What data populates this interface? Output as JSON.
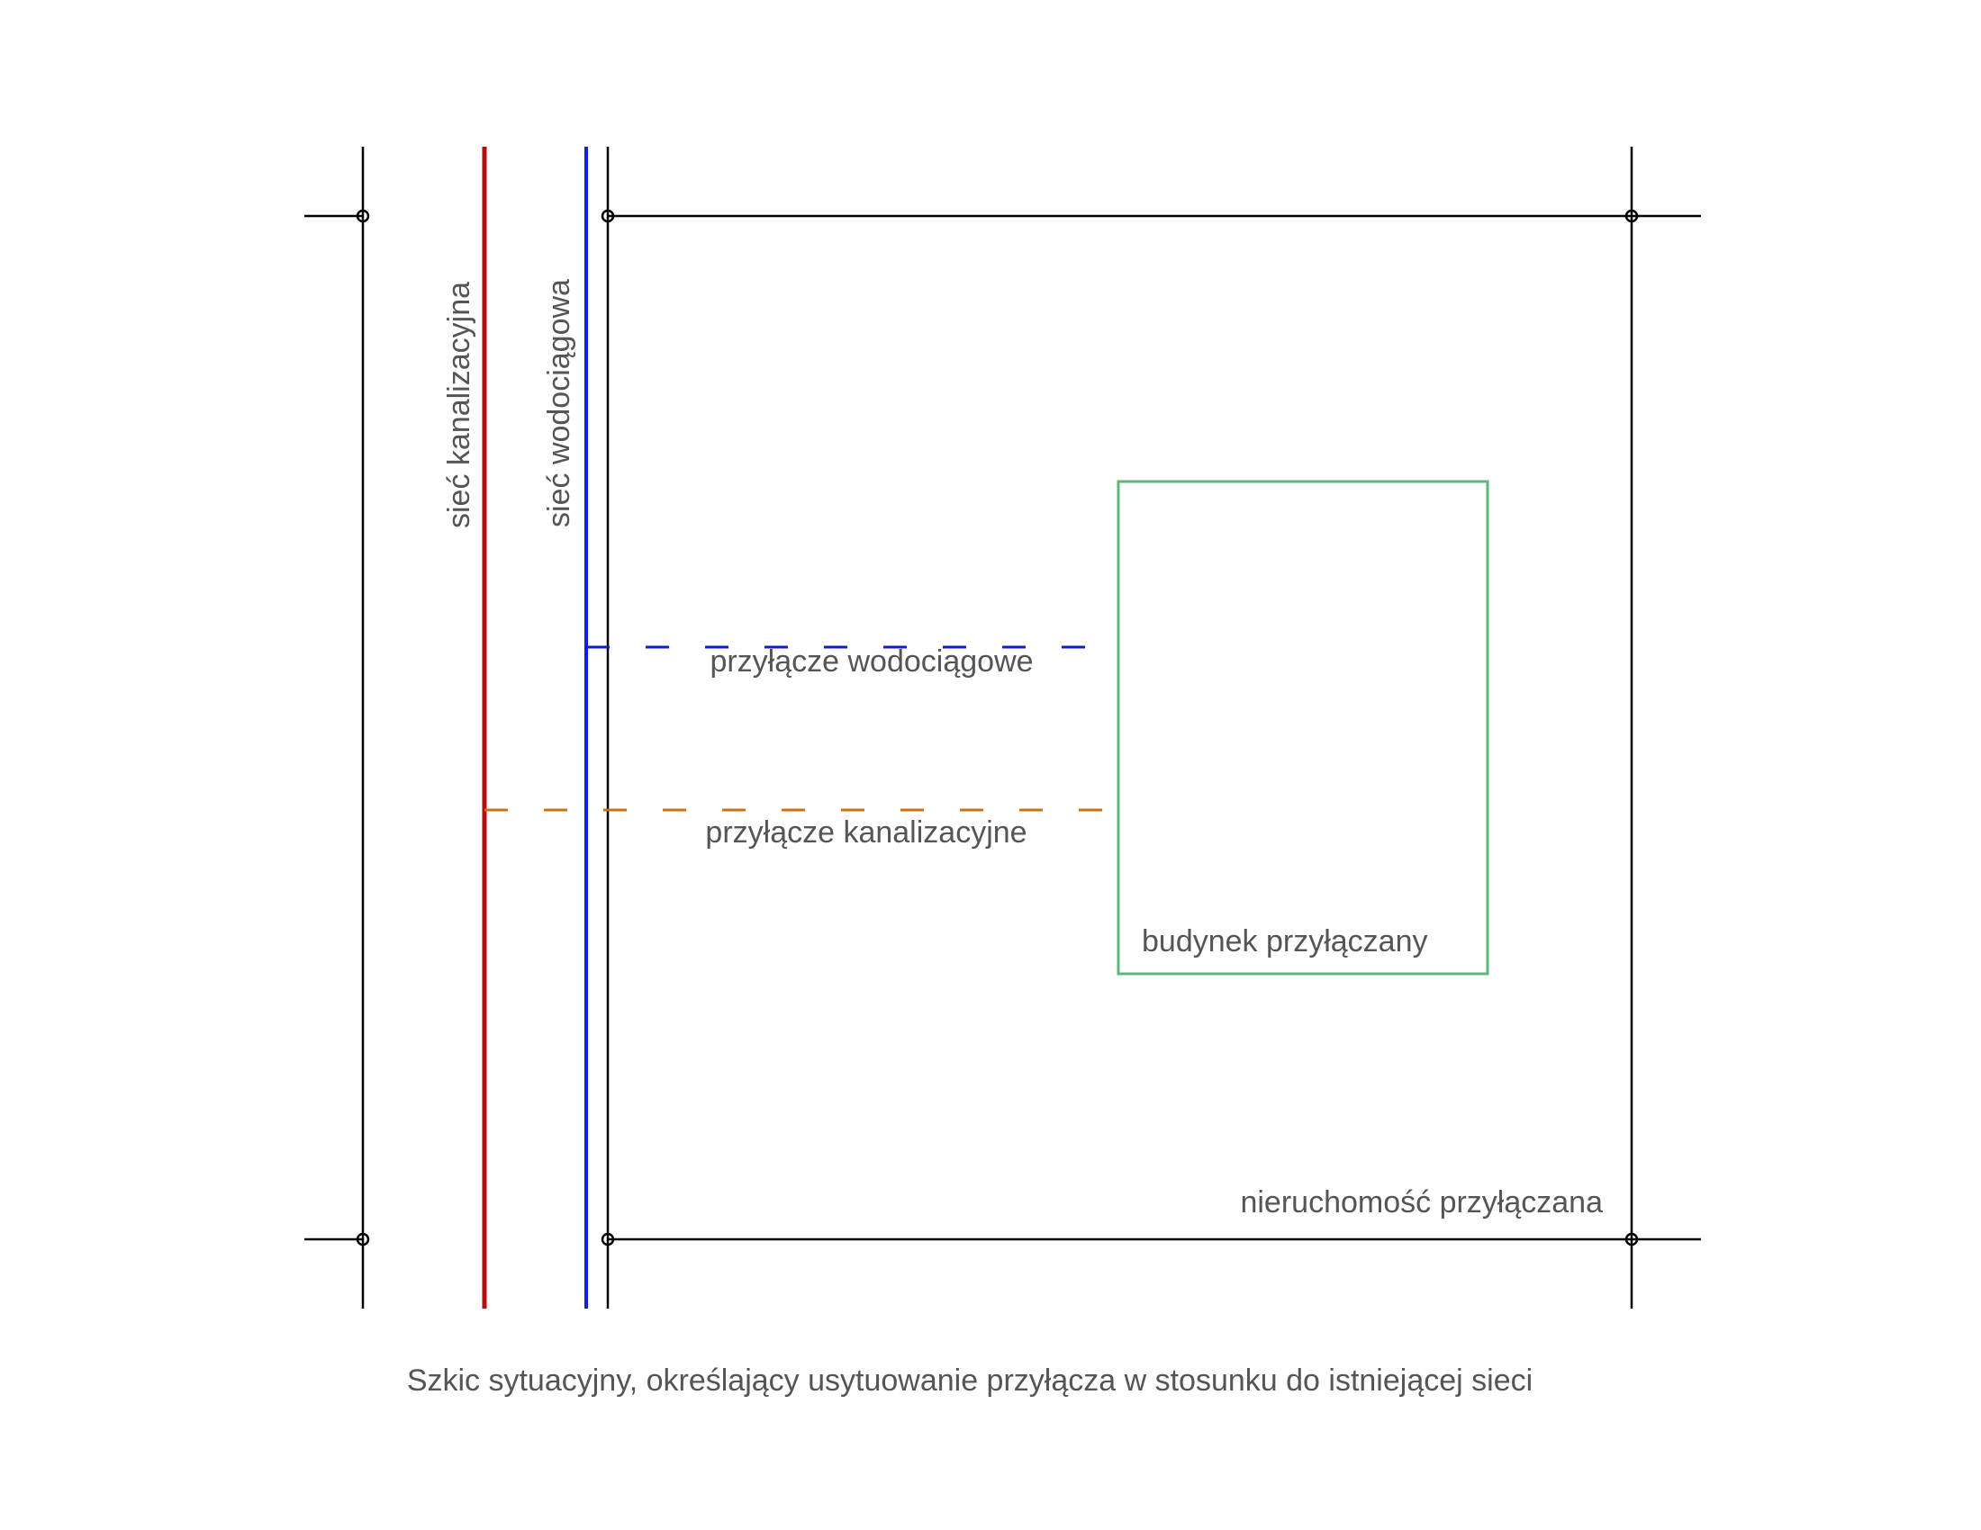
{
  "labels": {
    "sewer_network": "sieć kanalizacyjna",
    "water_network": "sieć wodociągowa",
    "water_connection": "przyłącze wodociągowe",
    "sewer_connection": "przyłącze kanalizacyjne",
    "building": "budynek przyłączany",
    "property": "nieruchomość przyłączana"
  },
  "caption": "Szkic sytuacyjny, określający usytuowanie przyłącza w stosunku do istniejącej sieci"
}
